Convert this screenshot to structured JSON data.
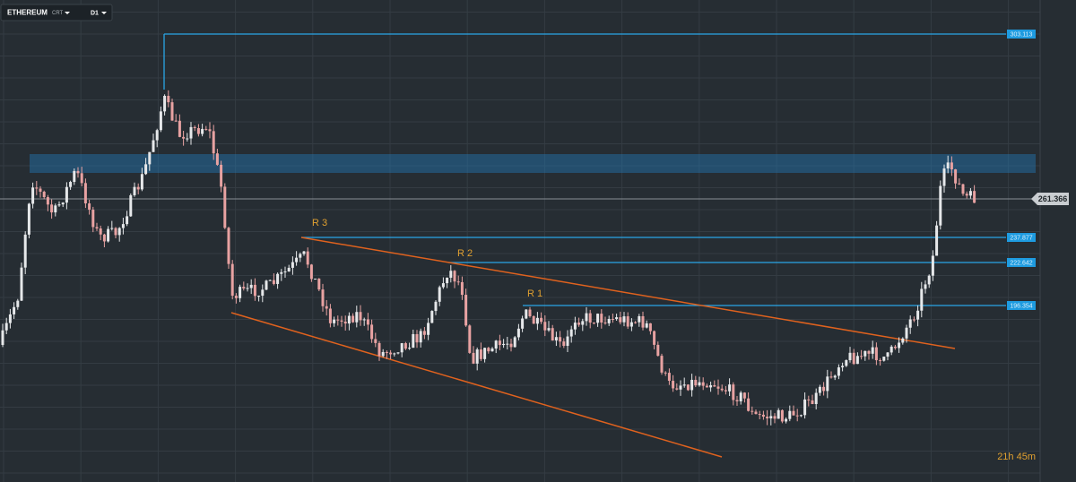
{
  "toolbar": {
    "symbol": "ETHEREUM",
    "source": "CRT",
    "timeframe": "D1"
  },
  "levels": [
    {
      "label": "303.113"
    },
    {
      "label": "237.877"
    },
    {
      "label": "222.642"
    },
    {
      "label": "196.354"
    }
  ],
  "current_price": "261.366",
  "annotations": [
    "R 3",
    "R 2",
    "R 1"
  ],
  "countdown": "21h 45m"
}
